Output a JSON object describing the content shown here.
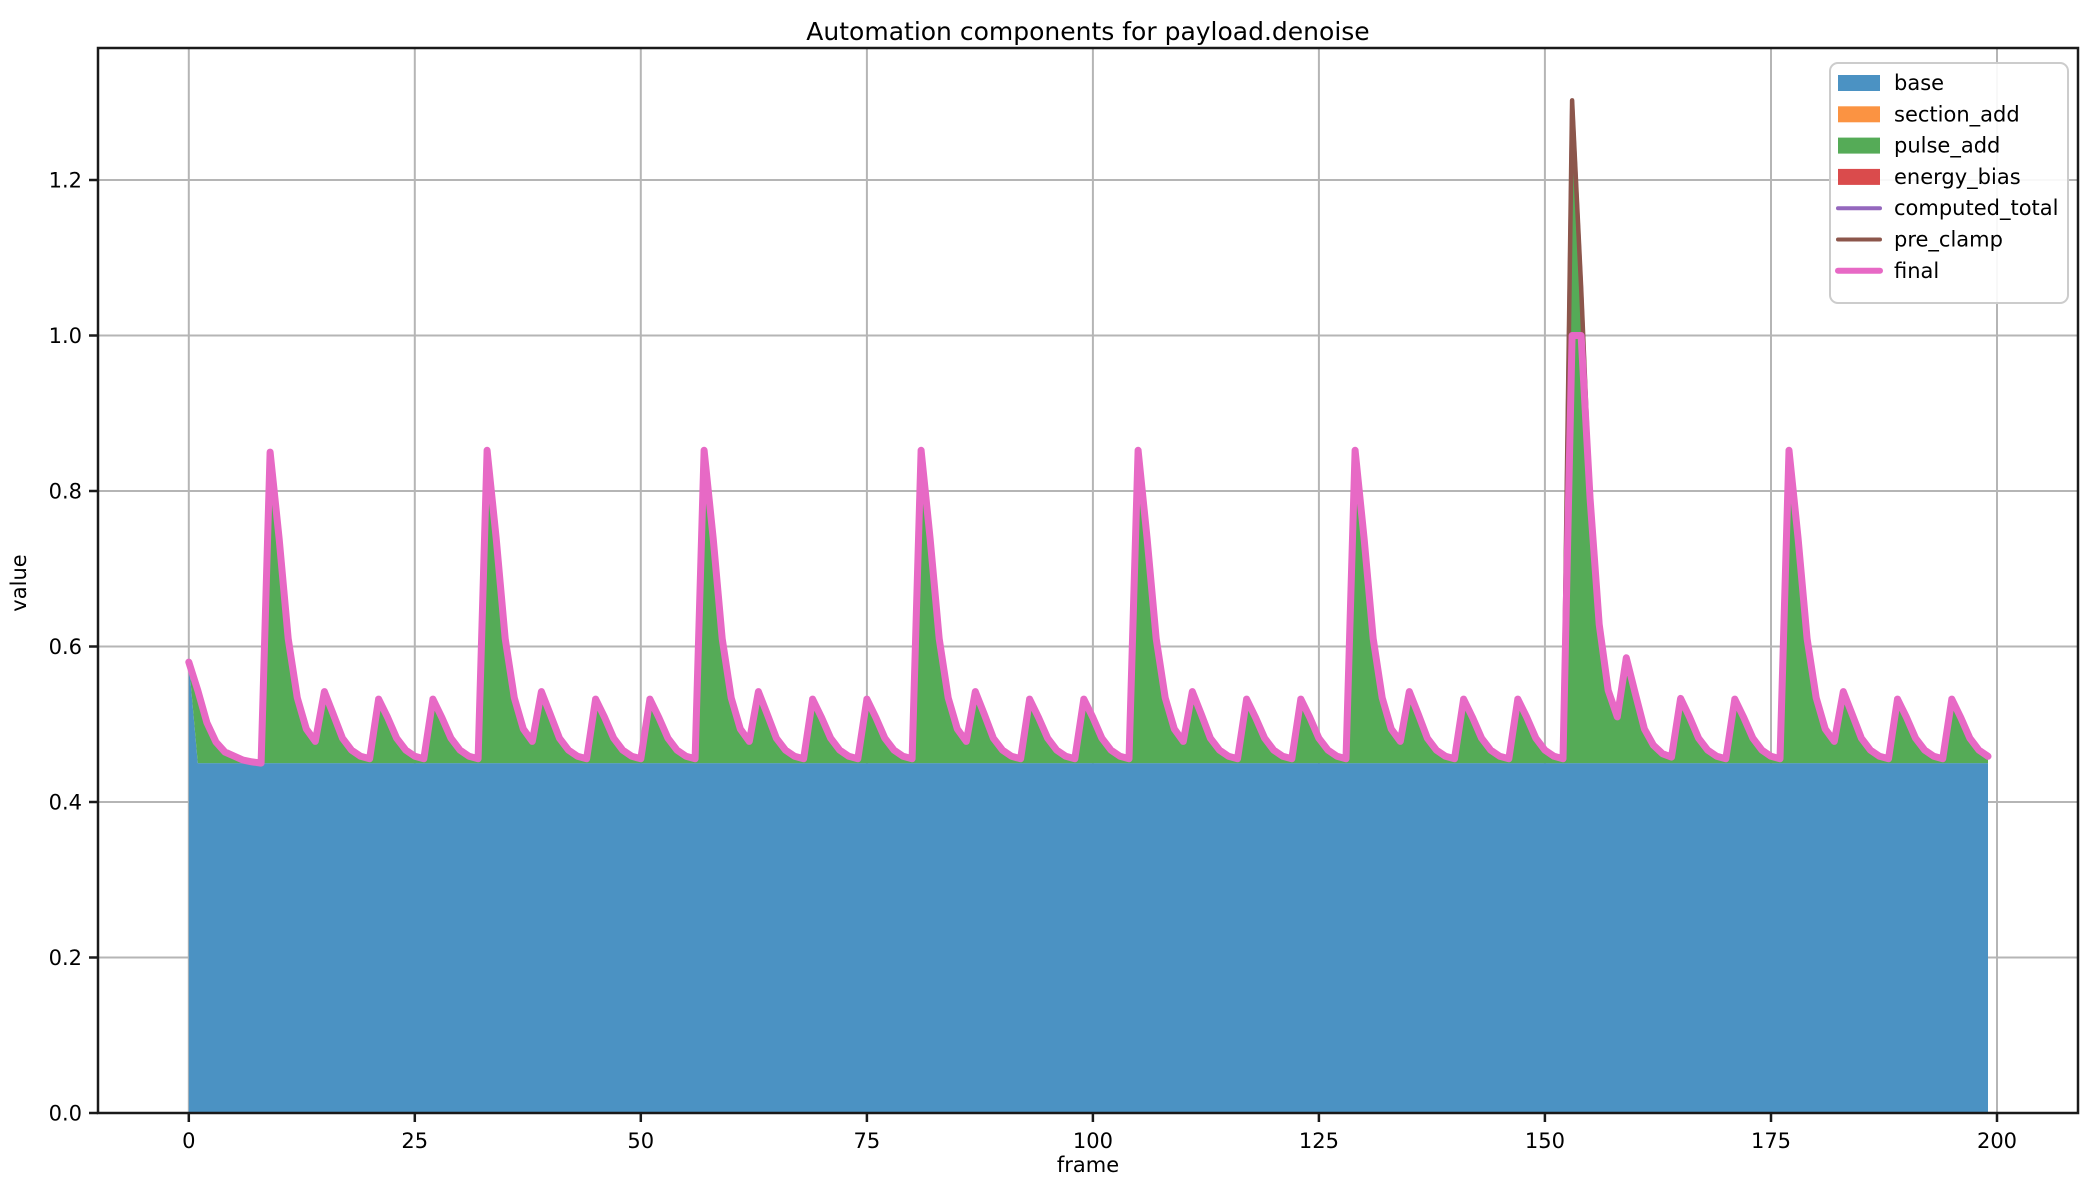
{
  "title": "Automation components for payload.denoise",
  "axes": {
    "xlabel": "frame",
    "ylabel": "value",
    "x_ticks": [
      0,
      25,
      50,
      75,
      100,
      125,
      150,
      175,
      200
    ],
    "x_tick_labels": [
      "0",
      "25",
      "50",
      "75",
      "100",
      "125",
      "150",
      "175",
      "200"
    ],
    "y_ticks": [
      0.0,
      0.2,
      0.4,
      0.6,
      0.8,
      1.0,
      1.2
    ],
    "y_tick_labels": [
      "0.0",
      "0.2",
      "0.4",
      "0.6",
      "0.8",
      "1.0",
      "1.2"
    ],
    "xlim": [
      -10.04,
      208.96
    ],
    "ylim": [
      0,
      1.3698
    ],
    "grid": true,
    "grid_color": "#b5b5b5",
    "spine_color": "#1a1a1a"
  },
  "legend": {
    "position": "upper right",
    "entries": [
      {
        "label": "base",
        "type": "patch",
        "color": "#4b92c3"
      },
      {
        "label": "section_add",
        "type": "patch",
        "color": "#fb9342"
      },
      {
        "label": "pulse_add",
        "type": "patch",
        "color": "#55ab57"
      },
      {
        "label": "energy_bias",
        "type": "patch",
        "color": "#da4b4c"
      },
      {
        "label": "computed_total",
        "type": "line",
        "color": "#9467bd"
      },
      {
        "label": "pre_clamp",
        "type": "line",
        "color": "#8c564b"
      },
      {
        "label": "final",
        "type": "line",
        "color": "#e769c5"
      }
    ]
  },
  "chart_data": {
    "type": "area",
    "title": "Automation components for payload.denoise",
    "xlabel": "frame",
    "ylabel": "value",
    "n_frames": 200,
    "stack_order": [
      "base",
      "section_add",
      "pulse_add",
      "energy_bias"
    ],
    "base_value": 0.45,
    "base_frame0_value": 0.58,
    "section_add_value": 0.0,
    "energy_bias_value": 0.0,
    "pulse_decay_ratios": [
      1,
      0.72,
      0.4,
      0.21,
      0.11,
      0.07,
      0.03,
      0.012
    ],
    "pulse_events": [
      [
        0,
        0.13
      ],
      [
        9,
        0.4
      ],
      [
        15,
        0.08
      ],
      [
        21,
        0.08
      ],
      [
        27,
        0.08
      ],
      [
        33,
        0.4
      ],
      [
        39,
        0.08
      ],
      [
        45,
        0.08
      ],
      [
        51,
        0.08
      ],
      [
        57,
        0.4
      ],
      [
        63,
        0.08
      ],
      [
        69,
        0.08
      ],
      [
        75,
        0.08
      ],
      [
        81,
        0.4
      ],
      [
        87,
        0.08
      ],
      [
        93,
        0.08
      ],
      [
        99,
        0.08
      ],
      [
        105,
        0.4
      ],
      [
        111,
        0.08
      ],
      [
        117,
        0.08
      ],
      [
        123,
        0.08
      ],
      [
        129,
        0.4
      ],
      [
        135,
        0.08
      ],
      [
        141,
        0.08
      ],
      [
        147,
        0.08
      ],
      [
        153,
        0.85
      ],
      [
        159,
        0.11
      ],
      [
        165,
        0.08
      ],
      [
        171,
        0.08
      ],
      [
        177,
        0.4
      ],
      [
        183,
        0.08
      ],
      [
        189,
        0.08
      ],
      [
        195,
        0.08
      ]
    ],
    "computed_total_rule": "base + section_add + pulse_add + energy_bias",
    "pre_clamp_rule": "equals computed_total",
    "final_rule": "min(pre_clamp, 1.0)",
    "clamp_max": 1.0,
    "key_points": {
      "start_value_frame0": 0.58,
      "baseline_value": 0.45,
      "major_spike_frames": [
        9,
        33,
        57,
        81,
        105,
        129,
        177
      ],
      "major_spike_total": 0.85,
      "minor_bump_total": 0.53,
      "anomaly_frame": 153,
      "anomaly_pre_clamp_peak": 1.3,
      "anomaly_final_clamped": 1.0
    }
  }
}
